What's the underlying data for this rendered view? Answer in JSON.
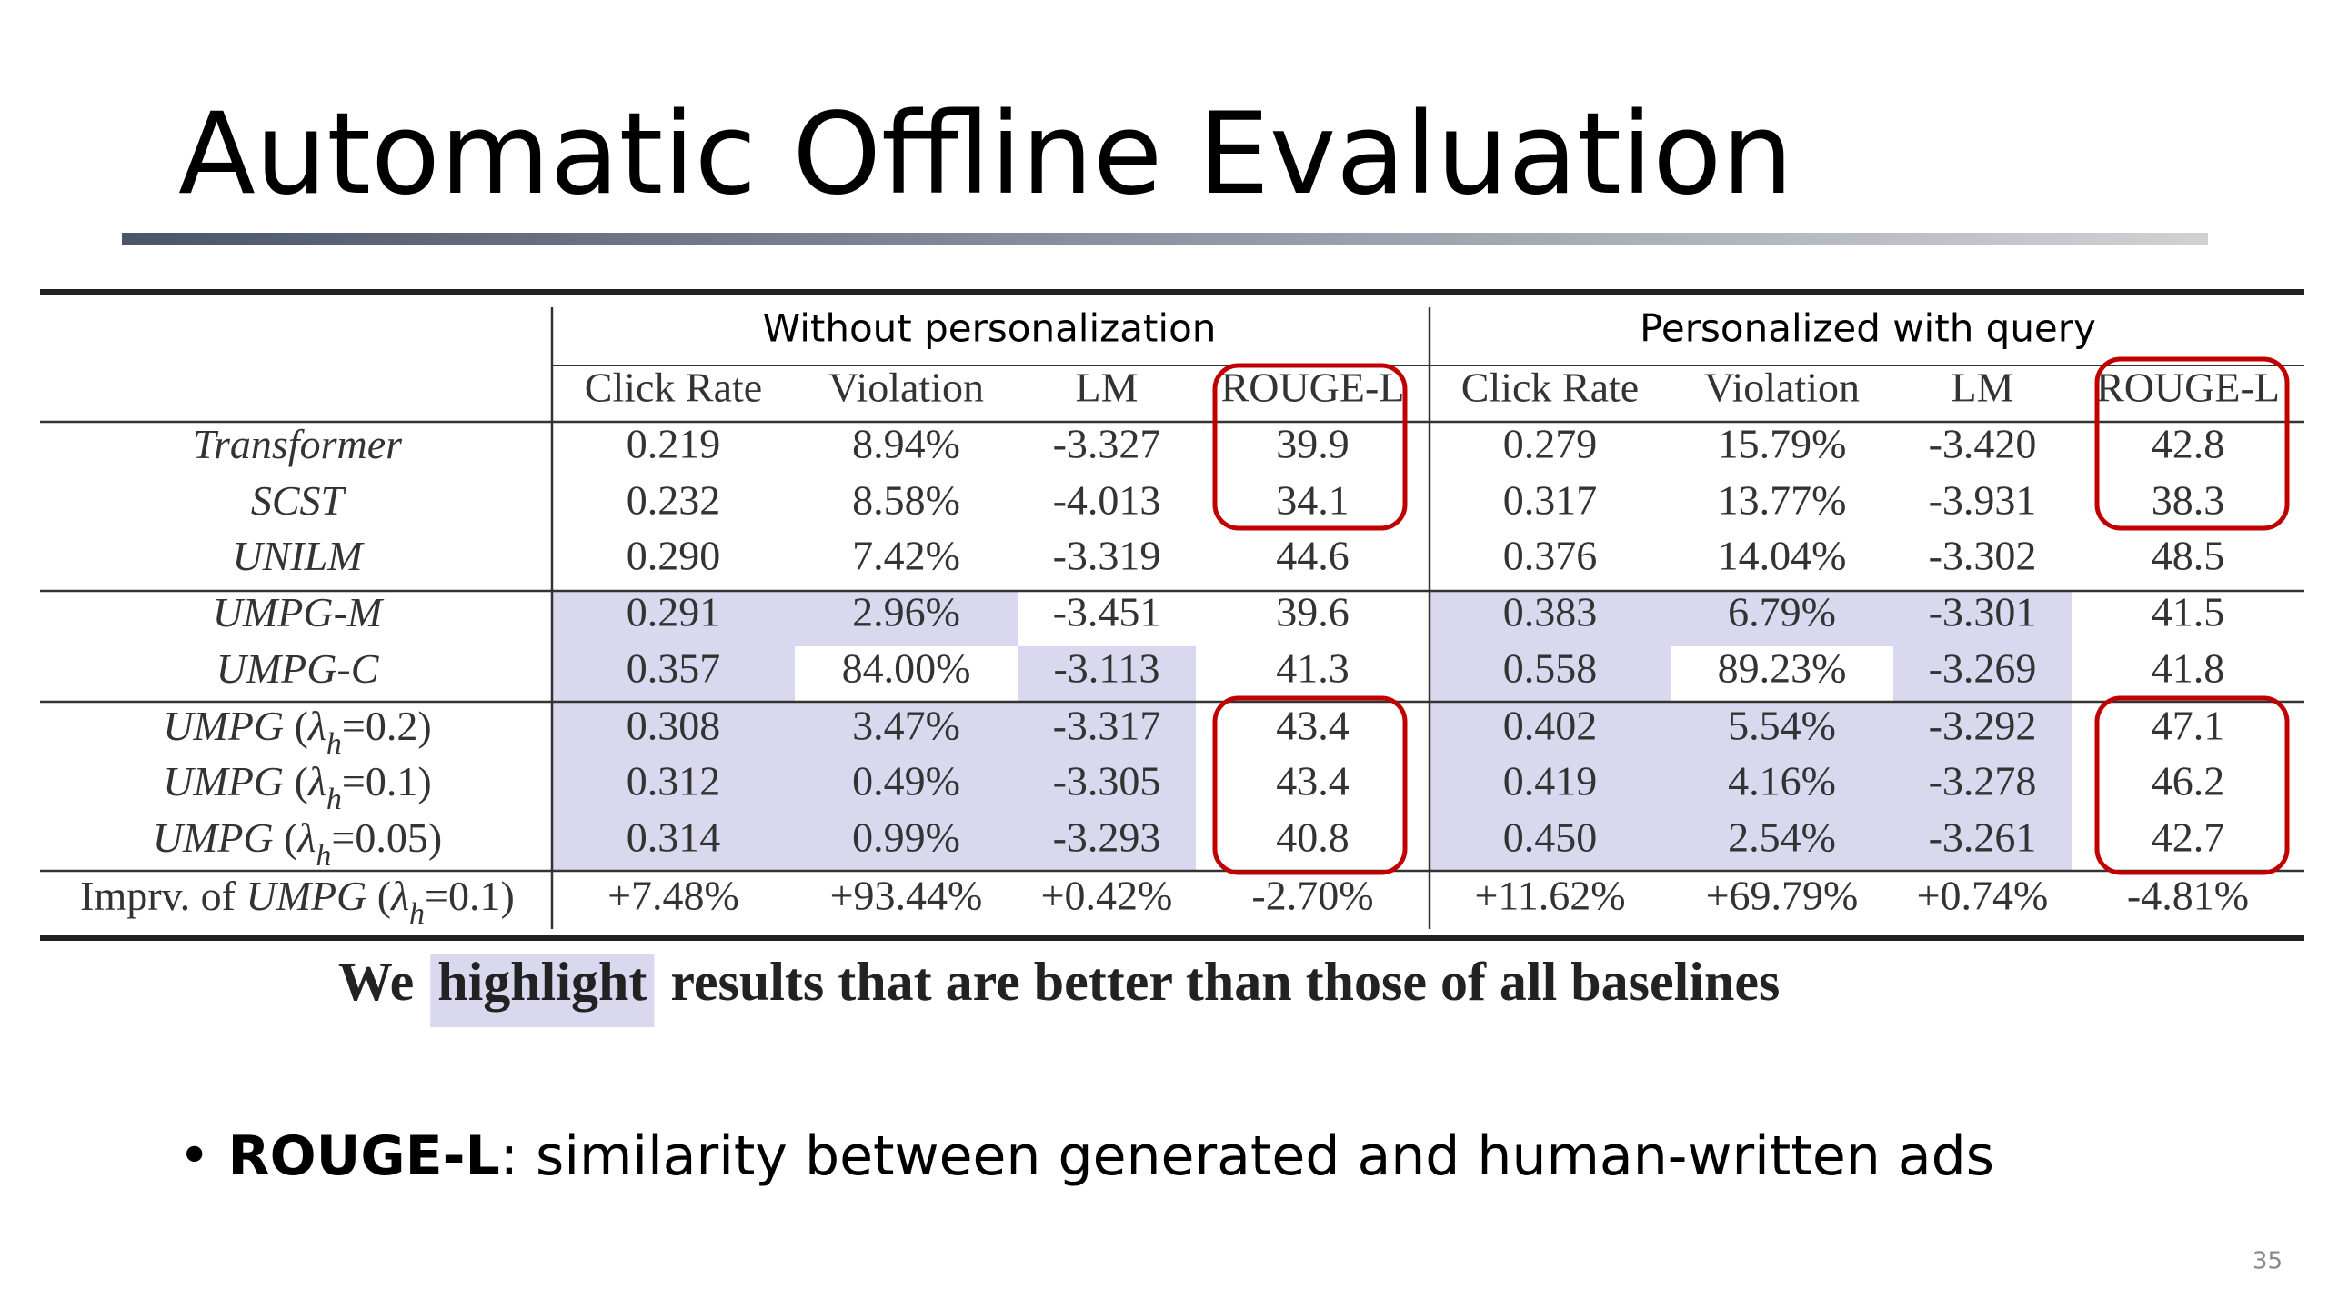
{
  "title": "Automatic Offline Evaluation",
  "table": {
    "groups": [
      "Without personalization",
      "Personalized with query"
    ],
    "columns": [
      "Click Rate",
      "Violation",
      "LM",
      "ROUGE-L",
      "Click Rate",
      "Violation",
      "LM",
      "ROUGE-L"
    ],
    "rows": [
      {
        "name": [
          {
            "text": "Transformer",
            "style": "italic"
          }
        ],
        "cells": [
          "0.219",
          "8.94%",
          "-3.327",
          "39.9",
          "0.279",
          "15.79%",
          "-3.420",
          "42.8"
        ],
        "highlighted": [
          false,
          false,
          false,
          false,
          false,
          false,
          false,
          false
        ]
      },
      {
        "name": [
          {
            "text": "SCST",
            "style": "italic"
          }
        ],
        "cells": [
          "0.232",
          "8.58%",
          "-4.013",
          "34.1",
          "0.317",
          "13.77%",
          "-3.931",
          "38.3"
        ],
        "highlighted": [
          false,
          false,
          false,
          false,
          false,
          false,
          false,
          false
        ]
      },
      {
        "name": [
          {
            "text": "UNILM",
            "style": "italic"
          }
        ],
        "cells": [
          "0.290",
          "7.42%",
          "-3.319",
          "44.6",
          "0.376",
          "14.04%",
          "-3.302",
          "48.5"
        ],
        "highlighted": [
          false,
          false,
          false,
          false,
          false,
          false,
          false,
          false
        ]
      },
      {
        "name": [
          {
            "text": "UMPG-M",
            "style": "italic"
          }
        ],
        "cells": [
          "0.291",
          "2.96%",
          "-3.451",
          "39.6",
          "0.383",
          "6.79%",
          "-3.301",
          "41.5"
        ],
        "highlighted": [
          true,
          true,
          false,
          false,
          true,
          true,
          true,
          false
        ]
      },
      {
        "name": [
          {
            "text": "UMPG-C",
            "style": "italic"
          }
        ],
        "cells": [
          "0.357",
          "84.00%",
          "-3.113",
          "41.3",
          "0.558",
          "89.23%",
          "-3.269",
          "41.8"
        ],
        "highlighted": [
          true,
          false,
          true,
          false,
          true,
          false,
          true,
          false
        ]
      },
      {
        "name": [
          {
            "text": "UMPG",
            "style": "italic"
          },
          {
            "text": " (",
            "style": "normal"
          },
          {
            "text": "λ",
            "style": "italic"
          },
          {
            "text": "h",
            "style": "sub"
          },
          {
            "text": "=0.2)",
            "style": "normal"
          }
        ],
        "cells": [
          "0.308",
          "3.47%",
          "-3.317",
          "43.4",
          "0.402",
          "5.54%",
          "-3.292",
          "47.1"
        ],
        "highlighted": [
          true,
          true,
          true,
          false,
          true,
          true,
          true,
          false
        ]
      },
      {
        "name": [
          {
            "text": "UMPG",
            "style": "italic"
          },
          {
            "text": " (",
            "style": "normal"
          },
          {
            "text": "λ",
            "style": "italic"
          },
          {
            "text": "h",
            "style": "sub"
          },
          {
            "text": "=0.1)",
            "style": "normal"
          }
        ],
        "cells": [
          "0.312",
          "0.49%",
          "-3.305",
          "43.4",
          "0.419",
          "4.16%",
          "-3.278",
          "46.2"
        ],
        "highlighted": [
          true,
          true,
          true,
          false,
          true,
          true,
          true,
          false
        ]
      },
      {
        "name": [
          {
            "text": "UMPG",
            "style": "italic"
          },
          {
            "text": " (",
            "style": "normal"
          },
          {
            "text": "λ",
            "style": "italic"
          },
          {
            "text": "h",
            "style": "sub"
          },
          {
            "text": "=0.05)",
            "style": "normal"
          }
        ],
        "cells": [
          "0.314",
          "0.99%",
          "-3.293",
          "40.8",
          "0.450",
          "2.54%",
          "-3.261",
          "42.7"
        ],
        "highlighted": [
          true,
          true,
          true,
          false,
          true,
          true,
          true,
          false
        ]
      },
      {
        "name": [
          {
            "text": "Imprv. of ",
            "style": "normal"
          },
          {
            "text": "UMPG",
            "style": "italic"
          },
          {
            "text": " (",
            "style": "normal"
          },
          {
            "text": "λ",
            "style": "italic"
          },
          {
            "text": "h",
            "style": "sub"
          },
          {
            "text": "=0.1)",
            "style": "normal"
          }
        ],
        "cells": [
          "+7.48%",
          "+93.44%",
          "+0.42%",
          "-2.70%",
          "+11.62%",
          "+69.79%",
          "+0.74%",
          "-4.81%"
        ],
        "highlighted": [
          false,
          false,
          false,
          false,
          false,
          false,
          false,
          false
        ]
      }
    ]
  },
  "caption": {
    "before": "We",
    "highlight": "highlight",
    "after": "results that are better than those of all baselines"
  },
  "bullet": {
    "term": "ROUGE-L",
    "text": ": similarity between generated and human-written ads"
  },
  "page_number": "35"
}
